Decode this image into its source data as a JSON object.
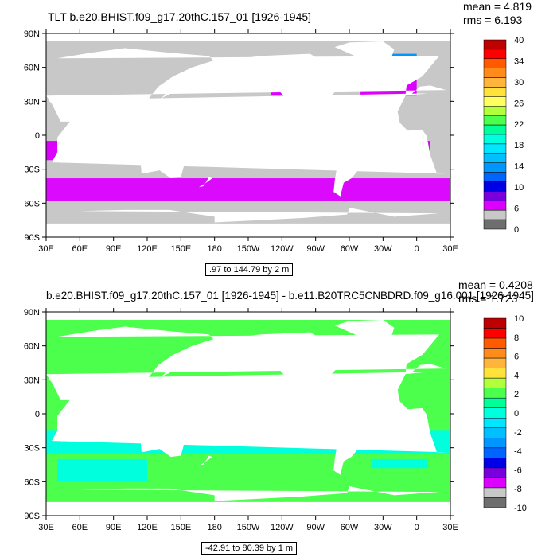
{
  "chart_data": [
    {
      "type": "heatmap",
      "title": "TLT b.e20.BHIST.f09_g17.20thC.157_01 [1926-1945]",
      "stats": {
        "mean": "mean = 4.819",
        "rms": "rms = 6.193"
      },
      "range_label": ".97 to 144.79 by 2 m",
      "lat_ticks": [
        "90N",
        "60N",
        "30N",
        "0",
        "30S",
        "60S",
        "90S"
      ],
      "lon_ticks": [
        "30E",
        "60E",
        "90E",
        "120E",
        "150E",
        "180",
        "150W",
        "120W",
        "90W",
        "60W",
        "30W",
        "0",
        "30E"
      ],
      "colorbar": {
        "labels": [
          "40",
          "34",
          "30",
          "26",
          "22",
          "18",
          "14",
          "10",
          "6",
          "0"
        ],
        "colors": [
          "#bf0000",
          "#ff0000",
          "#ff5a00",
          "#ff8c1a",
          "#ffb43c",
          "#ffe23c",
          "#ffff60",
          "#b4ff3c",
          "#4cff4c",
          "#00ff96",
          "#00ffdc",
          "#00e6ff",
          "#00c0ff",
          "#0096ff",
          "#0064ff",
          "#0000e6",
          "#7800dc",
          "#dc00ff",
          "#c8c8c8",
          "#6e6e6e"
        ]
      }
    },
    {
      "type": "heatmap",
      "title": "b.e20.BHIST.f09_g17.20thC.157_01 [1926-1945] - b.e11.B20TRC5CNBDRD.f09_g16.001 [1926-1945]",
      "stats": {
        "mean": "mean = 0.4208",
        "rms": "rms = 1.723"
      },
      "range_label": "-42.91 to 80.39 by 1 m",
      "lat_ticks": [
        "90N",
        "60N",
        "30N",
        "0",
        "30S",
        "60S",
        "90S"
      ],
      "lon_ticks": [
        "30E",
        "60E",
        "90E",
        "120E",
        "150E",
        "180",
        "150W",
        "120W",
        "90W",
        "60W",
        "30W",
        "0",
        "30E"
      ],
      "colorbar": {
        "labels": [
          "10",
          "8",
          "6",
          "4",
          "2",
          "0",
          "-2",
          "-4",
          "-6",
          "-8",
          "-10"
        ],
        "colors": [
          "#bf0000",
          "#ff0000",
          "#ff5a00",
          "#ff8c1a",
          "#ffb43c",
          "#ffe23c",
          "#b4ff3c",
          "#4cff4c",
          "#00ff96",
          "#00ffdc",
          "#00e6ff",
          "#00c0ff",
          "#0096ff",
          "#0064ff",
          "#0000e6",
          "#7800dc",
          "#dc00ff",
          "#c8c8c8",
          "#6e6e6e"
        ]
      }
    }
  ],
  "colors": {
    "land": "#ffffff",
    "ocean_gray": "#c8c8c8",
    "magenta": "#dc00ff",
    "green_field": "#4cff4c",
    "cyan_field": "#00ffdc"
  }
}
